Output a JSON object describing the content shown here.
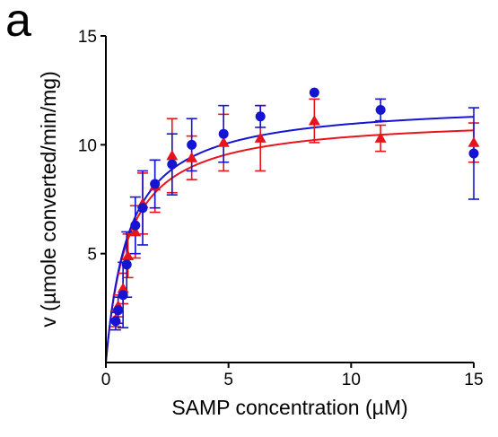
{
  "chart_data": {
    "type": "scatter",
    "panel_label": "a",
    "xlabel": "SAMP concentration (µM)",
    "ylabel": "v (µmole converted/min/mg)",
    "xlim": [
      0,
      15
    ],
    "ylim": [
      0,
      15
    ],
    "x_ticks": [
      0,
      5,
      10,
      15
    ],
    "y_ticks": [
      5,
      10,
      15
    ],
    "x_tick_labels": [
      "0",
      "5",
      "10",
      "15"
    ],
    "y_tick_labels": [
      "5",
      "10",
      "15"
    ],
    "grid": false,
    "legend": "none",
    "series": [
      {
        "color": "#e8141b",
        "marker": "triangle",
        "points": [
          {
            "x": 0.4,
            "y": 2.0,
            "err": 0.35
          },
          {
            "x": 0.5,
            "y": 2.6,
            "err": 0.5
          },
          {
            "x": 0.7,
            "y": 3.4,
            "err": 0.7
          },
          {
            "x": 0.9,
            "y": 4.9,
            "err": 1.0
          },
          {
            "x": 1.2,
            "y": 6.0,
            "err": 1.2
          },
          {
            "x": 1.5,
            "y": 7.3,
            "err": 1.4
          },
          {
            "x": 2.0,
            "y": 8.1,
            "err": 1.2
          },
          {
            "x": 2.7,
            "y": 9.5,
            "err": 1.7
          },
          {
            "x": 3.5,
            "y": 9.4,
            "err": 1.0
          },
          {
            "x": 4.8,
            "y": 10.1,
            "err": 1.3
          },
          {
            "x": 6.3,
            "y": 10.3,
            "err": 1.5
          },
          {
            "x": 8.5,
            "y": 11.1,
            "err": 1.0
          },
          {
            "x": 11.2,
            "y": 10.3,
            "err": 0.6
          },
          {
            "x": 15.0,
            "y": 10.1,
            "err": 0.9
          }
        ],
        "fit": {
          "model": "Michaelis-Menten",
          "vmax": 11.3,
          "km": 0.9
        }
      },
      {
        "color": "#1414d2",
        "marker": "circle",
        "points": [
          {
            "x": 0.4,
            "y": 1.9,
            "err": 0.4
          },
          {
            "x": 0.5,
            "y": 2.4,
            "err": 0.6
          },
          {
            "x": 0.7,
            "y": 3.1,
            "err": 1.5
          },
          {
            "x": 0.85,
            "y": 4.5,
            "err": 1.5
          },
          {
            "x": 1.2,
            "y": 6.3,
            "err": 1.3
          },
          {
            "x": 1.5,
            "y": 7.1,
            "err": 1.7
          },
          {
            "x": 2.0,
            "y": 8.2,
            "err": 1.1
          },
          {
            "x": 2.7,
            "y": 9.1,
            "err": 1.4
          },
          {
            "x": 3.5,
            "y": 10.0,
            "err": 1.2
          },
          {
            "x": 4.8,
            "y": 10.5,
            "err": 1.3
          },
          {
            "x": 6.3,
            "y": 11.3,
            "err": 0.5
          },
          {
            "x": 8.5,
            "y": 12.4,
            "err": 0.0
          },
          {
            "x": 11.2,
            "y": 11.6,
            "err": 0.5
          },
          {
            "x": 15.0,
            "y": 9.6,
            "err": 2.1
          }
        ],
        "fit": {
          "model": "Michaelis-Menten",
          "vmax": 12.0,
          "km": 0.95
        }
      }
    ]
  }
}
